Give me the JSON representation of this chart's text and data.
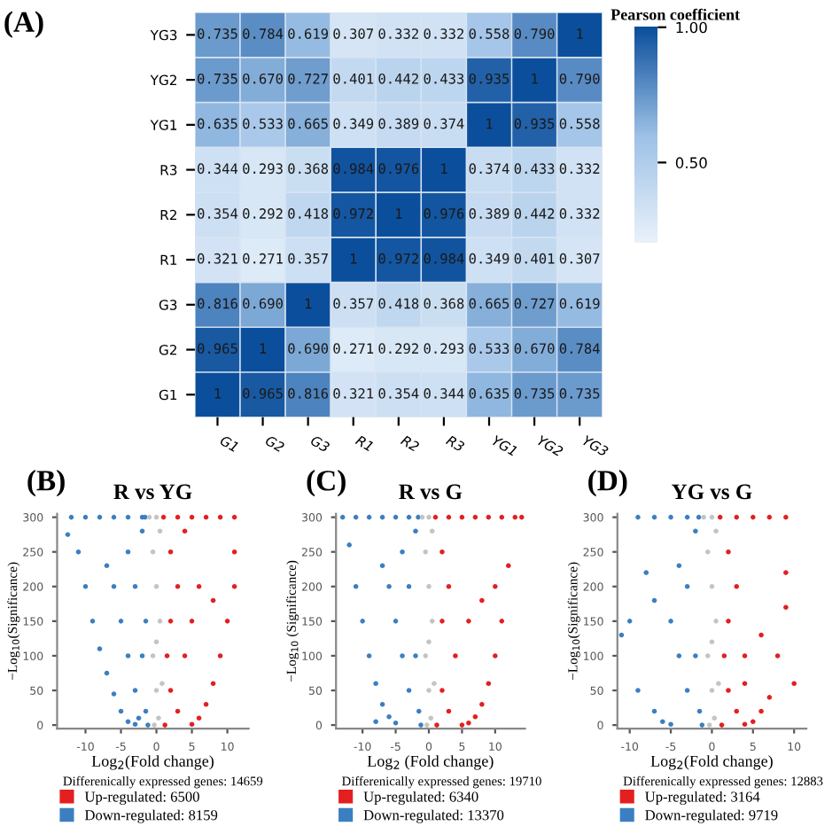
{
  "chart_data": [
    {
      "type": "heatmap",
      "annotations": [
        "(A)"
      ],
      "clabel": "Pearson coefficient",
      "categories": [
        "G1",
        "G2",
        "G3",
        "R1",
        "R2",
        "R3",
        "YG1",
        "YG2",
        "YG3"
      ],
      "y_categories": [
        "YG3",
        "YG2",
        "YG1",
        "R3",
        "R2",
        "R1",
        "G3",
        "G2",
        "G1"
      ],
      "cells": [
        [
          0.735,
          0.784,
          0.619,
          0.307,
          0.332,
          0.332,
          0.558,
          0.79,
          1
        ],
        [
          0.735,
          0.67,
          0.727,
          0.401,
          0.442,
          0.433,
          0.935,
          1,
          0.79
        ],
        [
          0.635,
          0.533,
          0.665,
          0.349,
          0.389,
          0.374,
          1,
          0.935,
          0.558
        ],
        [
          0.344,
          0.293,
          0.368,
          0.984,
          0.976,
          1,
          0.374,
          0.433,
          0.332
        ],
        [
          0.354,
          0.292,
          0.418,
          0.972,
          1,
          0.976,
          0.389,
          0.442,
          0.332
        ],
        [
          0.321,
          0.271,
          0.357,
          1,
          0.972,
          0.984,
          0.349,
          0.401,
          0.307
        ],
        [
          0.816,
          0.69,
          1,
          0.357,
          0.418,
          0.368,
          0.665,
          0.727,
          0.619
        ],
        [
          0.965,
          1,
          0.69,
          0.271,
          0.292,
          0.293,
          0.533,
          0.67,
          0.784
        ],
        [
          1,
          0.965,
          0.816,
          0.321,
          0.354,
          0.344,
          0.635,
          0.735,
          0.735
        ]
      ],
      "cell_labels": [
        [
          "0.735",
          "0.784",
          "0.619",
          "0.307",
          "0.332",
          "0.332",
          "0.558",
          "0.790",
          "1"
        ],
        [
          "0.735",
          "0.670",
          "0.727",
          "0.401",
          "0.442",
          "0.433",
          "0.935",
          "1",
          "0.790"
        ],
        [
          "0.635",
          "0.533",
          "0.665",
          "0.349",
          "0.389",
          "0.374",
          "1",
          "0.935",
          "0.558"
        ],
        [
          "0.344",
          "0.293",
          "0.368",
          "0.984",
          "0.976",
          "1",
          "0.374",
          "0.433",
          "0.332"
        ],
        [
          "0.354",
          "0.292",
          "0.418",
          "0.972",
          "1",
          "0.976",
          "0.389",
          "0.442",
          "0.332"
        ],
        [
          "0.321",
          "0.271",
          "0.357",
          "1",
          "0.972",
          "0.984",
          "0.349",
          "0.401",
          "0.307"
        ],
        [
          "0.816",
          "0.690",
          "1",
          "0.357",
          "0.418",
          "0.368",
          "0.665",
          "0.727",
          "0.619"
        ],
        [
          "0.965",
          "1",
          "0.690",
          "0.271",
          "0.292",
          "0.293",
          "0.533",
          "0.670",
          "0.784"
        ],
        [
          "1",
          "0.965",
          "0.816",
          "0.321",
          "0.354",
          "0.344",
          "0.635",
          "0.735",
          "0.735"
        ]
      ],
      "clim": [
        0.2,
        1
      ],
      "cticks": [
        {
          "value": 0.5,
          "label": "0.50"
        },
        {
          "value": 1,
          "label": "1.00"
        }
      ]
    },
    {
      "type": "scatter",
      "title": "R vs YG",
      "annotations": [
        "(B)",
        "Differenically expressed genes: 14659"
      ],
      "xlabel": "Log$_{2}$(Fold change)",
      "ylabel": "−Log$_{10}$(Significance)",
      "xlim": [
        -14,
        13
      ],
      "xticks": [
        -10,
        -5,
        0,
        5,
        10
      ],
      "ylim": [
        -5,
        305
      ],
      "yticks": [
        0,
        50,
        100,
        150,
        200,
        250,
        300
      ],
      "legend": "bottom",
      "marker": "circle",
      "series": [
        {
          "name": "Up-regulated: 6500",
          "color": "#e41f1f",
          "x": [
            1,
            3,
            5,
            7,
            9,
            11,
            11,
            11,
            10,
            9,
            8,
            7,
            6,
            5,
            1.2,
            2,
            3,
            2,
            4,
            2,
            5,
            6,
            3,
            1.5,
            4,
            8
          ],
          "values": [
            300,
            300,
            300,
            300,
            300,
            300,
            250,
            200,
            150,
            100,
            60,
            30,
            10,
            1,
            0,
            250,
            200,
            150,
            100,
            50,
            150,
            200,
            20,
            100,
            280,
            180
          ]
        },
        {
          "name": "Down-regulated: 8159",
          "color": "#3b7fc1",
          "x": [
            -12,
            -10,
            -8,
            -6,
            -4,
            -2,
            -1.6,
            -12.5,
            -11,
            -10,
            -9,
            -8,
            -7,
            -6,
            -5,
            -4,
            -3,
            -1.2,
            -4,
            -3,
            -5,
            -2,
            -3,
            -1.5,
            -6,
            -7,
            -2,
            -1.5,
            -4,
            -2.5
          ],
          "values": [
            300,
            300,
            300,
            300,
            300,
            300,
            300,
            275,
            250,
            200,
            150,
            110,
            75,
            45,
            20,
            5,
            1,
            0,
            250,
            200,
            150,
            100,
            50,
            20,
            200,
            230,
            280,
            150,
            100,
            10
          ]
        },
        {
          "color": "#c4c4c4",
          "x": [
            -1,
            0,
            0.5,
            -0.5,
            0,
            0.5,
            -0.5,
            0,
            0.3,
            -0.3,
            0,
            0.8
          ],
          "values": [
            300,
            300,
            280,
            250,
            200,
            150,
            100,
            50,
            10,
            0,
            120,
            60
          ]
        }
      ]
    },
    {
      "type": "scatter",
      "title": "R vs G",
      "annotations": [
        "(C)",
        "Differenically expressed genes: 19710"
      ],
      "xlabel": "Log$_{2}$ (Fold change)",
      "ylabel": "−Log$_{10}$ (Significance)",
      "xlim": [
        -14,
        14.5
      ],
      "xticks": [
        -10,
        -5,
        0,
        5,
        10
      ],
      "ylim": [
        -5,
        305
      ],
      "yticks": [
        0,
        50,
        100,
        150,
        200,
        250,
        300
      ],
      "legend": "bottom",
      "marker": "circle",
      "series": [
        {
          "name": "Up-regulated: 6340",
          "color": "#e41f1f",
          "x": [
            1,
            3,
            5,
            7,
            9,
            11,
            13,
            14,
            12,
            11,
            10,
            9,
            8,
            7,
            6,
            5,
            1.2,
            2,
            3,
            2,
            4,
            2,
            6,
            3,
            10,
            8
          ],
          "values": [
            300,
            300,
            300,
            300,
            300,
            300,
            300,
            300,
            230,
            150,
            100,
            60,
            30,
            12,
            3,
            0,
            0,
            250,
            200,
            150,
            100,
            50,
            150,
            20,
            200,
            180
          ]
        },
        {
          "name": "Down-regulated: 13370",
          "color": "#3b7fc1",
          "x": [
            -13,
            -11,
            -9,
            -7,
            -5,
            -3,
            -1.6,
            -12,
            -11,
            -10,
            -9,
            -8,
            -7,
            -6,
            -5,
            -1.2,
            -8,
            -4,
            -3,
            -5,
            -2,
            -3,
            -1.5,
            -6,
            -7,
            -2,
            -4
          ],
          "values": [
            300,
            300,
            300,
            300,
            300,
            300,
            300,
            260,
            200,
            150,
            100,
            60,
            30,
            12,
            3,
            0,
            5,
            250,
            200,
            150,
            100,
            50,
            20,
            200,
            230,
            280,
            100
          ]
        },
        {
          "color": "#c4c4c4",
          "x": [
            -1,
            0,
            0.5,
            -0.5,
            0,
            0.5,
            -0.5,
            0,
            0.3,
            -0.3,
            0,
            0.8
          ],
          "values": [
            300,
            300,
            280,
            250,
            200,
            150,
            100,
            50,
            10,
            0,
            120,
            60
          ]
        }
      ]
    },
    {
      "type": "scatter",
      "title": "YG vs G",
      "annotations": [
        "(D)",
        "Differenically expressed genes: 12883"
      ],
      "xlabel": "Log$_{2}$(Fold change)",
      "ylabel": "−Log$_{10}$(Significance)",
      "xlim": [
        -11.5,
        11.5
      ],
      "xticks": [
        -10,
        -5,
        0,
        5,
        10
      ],
      "ylim": [
        -5,
        305
      ],
      "yticks": [
        0,
        50,
        100,
        150,
        200,
        250,
        300
      ],
      "legend": "bottom",
      "marker": "circle",
      "series": [
        {
          "name": "Up-regulated: 3164",
          "color": "#e41f1f",
          "x": [
            1,
            3,
            5,
            7,
            9,
            9,
            9,
            8,
            10,
            7,
            6,
            5,
            4,
            1.2,
            2,
            3,
            2,
            4,
            2,
            3,
            1.5,
            4,
            6
          ],
          "values": [
            300,
            300,
            300,
            300,
            300,
            220,
            170,
            100,
            60,
            40,
            20,
            5,
            1,
            0,
            250,
            200,
            150,
            100,
            50,
            20,
            100,
            60,
            130
          ]
        },
        {
          "name": "Down-regulated: 9719",
          "color": "#3b7fc1",
          "x": [
            -9,
            -7,
            -5,
            -3,
            -1.6,
            -10,
            -11,
            -9,
            -7,
            -6,
            -5,
            -1.2,
            -8,
            -7,
            -4,
            -3,
            -5,
            -2,
            -3,
            -1.5,
            -2,
            -4
          ],
          "values": [
            300,
            300,
            300,
            300,
            300,
            150,
            130,
            50,
            20,
            5,
            1,
            0,
            220,
            180,
            230,
            200,
            150,
            100,
            50,
            20,
            280,
            100
          ]
        },
        {
          "color": "#c4c4c4",
          "x": [
            -1,
            0,
            0.5,
            -0.5,
            0,
            0.5,
            -0.5,
            0,
            0.3,
            -0.3,
            0,
            0.8
          ],
          "values": [
            300,
            300,
            280,
            250,
            200,
            150,
            100,
            50,
            10,
            0,
            120,
            60
          ]
        }
      ]
    }
  ]
}
